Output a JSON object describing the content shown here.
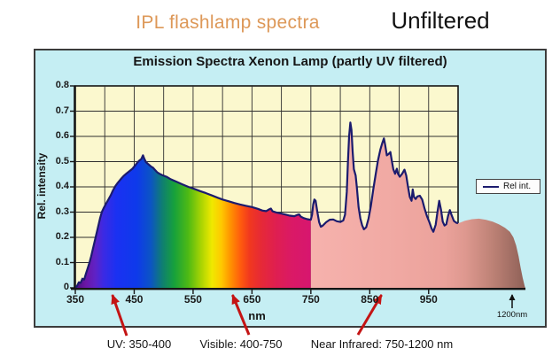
{
  "page": {
    "heading_orange": "IPL flashlamp spectra",
    "heading_black": "Unfiltered"
  },
  "colors": {
    "heading_orange": "#DD9858",
    "chart_bg": "#C5EEF3",
    "plot_bg": "#FBF8CE",
    "grid_color": "#2f2f2f",
    "line_color": "#1B1B6E",
    "arrow_red": "#C41414",
    "axis_color": "#151515"
  },
  "chart": {
    "title": "Emission Spectra Xenon Lamp (partly UV filtered)",
    "x_axis_title": "nm",
    "y_axis_title": "Rel. intensity",
    "extra_x_annotation": "1200nm",
    "legend_label": "Rel int."
  },
  "band_labels": {
    "uv": "UV: 350-400",
    "visible": "Visible: 400-750",
    "nir": "Near Infrared: 750-1200 nm"
  },
  "chart_data": {
    "type": "area",
    "title": "Emission Spectra Xenon Lamp (partly UV filtered)",
    "xlabel": "nm",
    "ylabel": "Rel. intensity",
    "xlim": [
      350,
      1000
    ],
    "ylim": [
      0,
      0.8
    ],
    "x_ticks": [
      350,
      450,
      550,
      650,
      750,
      850,
      950
    ],
    "y_ticks": [
      0,
      0.1,
      0.2,
      0.3,
      0.4,
      0.5,
      0.6,
      0.7,
      0.8
    ],
    "grid": "on",
    "legend": {
      "label": "Rel int.",
      "position": "right-of-plot"
    },
    "spectral_bands": [
      {
        "band": "UV",
        "range_nm": [
          350,
          400
        ],
        "annotation": "UV: 350-400",
        "arrow_target_nm": 413
      },
      {
        "band": "Visible",
        "range_nm": [
          400,
          750
        ],
        "annotation": "Visible: 400-750",
        "arrow_target_nm": 617
      },
      {
        "band": "Near Infrared",
        "range_nm": [
          750,
          1200
        ],
        "annotation": "Near Infrared: 750-1200 nm",
        "arrow_target_nm": 870
      }
    ],
    "extra_annotation": {
      "label": "1200nm",
      "meaning": "spectrum tail extends to 1200 nm beyond plot frame"
    },
    "series": [
      {
        "name": "Rel int.",
        "points_nm_intensity": [
          [
            350,
            0
          ],
          [
            353,
            0.008
          ],
          [
            356,
            0.022
          ],
          [
            359,
            0.02
          ],
          [
            362,
            0.036
          ],
          [
            365,
            0.033
          ],
          [
            368,
            0.056
          ],
          [
            371,
            0.078
          ],
          [
            374,
            0.1
          ],
          [
            377,
            0.125
          ],
          [
            380,
            0.155
          ],
          [
            383,
            0.185
          ],
          [
            386,
            0.215
          ],
          [
            389,
            0.245
          ],
          [
            392,
            0.275
          ],
          [
            395,
            0.3
          ],
          [
            398,
            0.315
          ],
          [
            402,
            0.333
          ],
          [
            406,
            0.349
          ],
          [
            410,
            0.366
          ],
          [
            414,
            0.386
          ],
          [
            418,
            0.403
          ],
          [
            422,
            0.416
          ],
          [
            427,
            0.43
          ],
          [
            432,
            0.443
          ],
          [
            437,
            0.453
          ],
          [
            442,
            0.462
          ],
          [
            447,
            0.472
          ],
          [
            452,
            0.486
          ],
          [
            456,
            0.498
          ],
          [
            459,
            0.505
          ],
          [
            462,
            0.51
          ],
          [
            465,
            0.525
          ],
          [
            467,
            0.512
          ],
          [
            470,
            0.498
          ],
          [
            473,
            0.492
          ],
          [
            476,
            0.486
          ],
          [
            479,
            0.48
          ],
          [
            482,
            0.476
          ],
          [
            485,
            0.468
          ],
          [
            489,
            0.458
          ],
          [
            493,
            0.452
          ],
          [
            498,
            0.446
          ],
          [
            505,
            0.44
          ],
          [
            512,
            0.43
          ],
          [
            522,
            0.42
          ],
          [
            532,
            0.41
          ],
          [
            542,
            0.4
          ],
          [
            552,
            0.392
          ],
          [
            562,
            0.383
          ],
          [
            572,
            0.375
          ],
          [
            582,
            0.366
          ],
          [
            592,
            0.357
          ],
          [
            600,
            0.35
          ],
          [
            610,
            0.343
          ],
          [
            620,
            0.336
          ],
          [
            630,
            0.33
          ],
          [
            640,
            0.325
          ],
          [
            650,
            0.32
          ],
          [
            660,
            0.313
          ],
          [
            668,
            0.306
          ],
          [
            674,
            0.304
          ],
          [
            679,
            0.311
          ],
          [
            682,
            0.314
          ],
          [
            685,
            0.303
          ],
          [
            692,
            0.298
          ],
          [
            700,
            0.294
          ],
          [
            708,
            0.29
          ],
          [
            714,
            0.286
          ],
          [
            722,
            0.284
          ],
          [
            727,
            0.289
          ],
          [
            730,
            0.291
          ],
          [
            733,
            0.282
          ],
          [
            738,
            0.276
          ],
          [
            744,
            0.272
          ],
          [
            749,
            0.27
          ],
          [
            750,
            0.27
          ],
          [
            752,
            0.29
          ],
          [
            754,
            0.33
          ],
          [
            756,
            0.35
          ],
          [
            758,
            0.345
          ],
          [
            761,
            0.3
          ],
          [
            764,
            0.26
          ],
          [
            767,
            0.242
          ],
          [
            770,
            0.246
          ],
          [
            776,
            0.26
          ],
          [
            782,
            0.27
          ],
          [
            788,
            0.271
          ],
          [
            794,
            0.264
          ],
          [
            800,
            0.261
          ],
          [
            805,
            0.267
          ],
          [
            808,
            0.29
          ],
          [
            811,
            0.38
          ],
          [
            813,
            0.5
          ],
          [
            815,
            0.6
          ],
          [
            817,
            0.655
          ],
          [
            819,
            0.625
          ],
          [
            821,
            0.54
          ],
          [
            823,
            0.47
          ],
          [
            826,
            0.445
          ],
          [
            828,
            0.4
          ],
          [
            831,
            0.32
          ],
          [
            834,
            0.275
          ],
          [
            837,
            0.248
          ],
          [
            840,
            0.232
          ],
          [
            844,
            0.24
          ],
          [
            848,
            0.275
          ],
          [
            852,
            0.325
          ],
          [
            856,
            0.39
          ],
          [
            860,
            0.45
          ],
          [
            864,
            0.505
          ],
          [
            868,
            0.548
          ],
          [
            871,
            0.572
          ],
          [
            874,
            0.592
          ],
          [
            876,
            0.568
          ],
          [
            879,
            0.525
          ],
          [
            882,
            0.53
          ],
          [
            885,
            0.538
          ],
          [
            887,
            0.51
          ],
          [
            890,
            0.47
          ],
          [
            893,
            0.452
          ],
          [
            896,
            0.472
          ],
          [
            898,
            0.452
          ],
          [
            901,
            0.44
          ],
          [
            905,
            0.452
          ],
          [
            909,
            0.468
          ],
          [
            912,
            0.445
          ],
          [
            915,
            0.4
          ],
          [
            918,
            0.36
          ],
          [
            921,
            0.345
          ],
          [
            923,
            0.39
          ],
          [
            925,
            0.36
          ],
          [
            928,
            0.352
          ],
          [
            931,
            0.362
          ],
          [
            935,
            0.365
          ],
          [
            939,
            0.35
          ],
          [
            943,
            0.315
          ],
          [
            947,
            0.285
          ],
          [
            951,
            0.262
          ],
          [
            955,
            0.235
          ],
          [
            958,
            0.222
          ],
          [
            962,
            0.25
          ],
          [
            965,
            0.3
          ],
          [
            968,
            0.345
          ],
          [
            971,
            0.31
          ],
          [
            974,
            0.262
          ],
          [
            977,
            0.247
          ],
          [
            980,
            0.252
          ],
          [
            983,
            0.285
          ],
          [
            986,
            0.308
          ],
          [
            989,
            0.288
          ],
          [
            993,
            0.265
          ],
          [
            997,
            0.258
          ],
          [
            1000,
            0.256
          ]
        ]
      }
    ],
    "tail_beyond_plot_points_nm_intensity": [
      [
        1005,
        0.258
      ],
      [
        1020,
        0.266
      ],
      [
        1040,
        0.272
      ],
      [
        1060,
        0.274
      ],
      [
        1080,
        0.27
      ],
      [
        1100,
        0.262
      ],
      [
        1118,
        0.252
      ],
      [
        1136,
        0.238
      ],
      [
        1150,
        0.222
      ],
      [
        1160,
        0.2
      ],
      [
        1168,
        0.168
      ],
      [
        1175,
        0.125
      ],
      [
        1181,
        0.08
      ],
      [
        1187,
        0.04
      ],
      [
        1193,
        0.005
      ],
      [
        1195,
        0
      ]
    ],
    "visible_band_gradient_stops_nm_color": [
      [
        350,
        "#4A0E7E"
      ],
      [
        368,
        "#6B16A6"
      ],
      [
        384,
        "#5F22C6"
      ],
      [
        398,
        "#3B2AE4"
      ],
      [
        420,
        "#1A31F2"
      ],
      [
        455,
        "#0E3AEA"
      ],
      [
        478,
        "#0C54C4"
      ],
      [
        498,
        "#0F7F70"
      ],
      [
        518,
        "#17A13B"
      ],
      [
        542,
        "#4FBA14"
      ],
      [
        563,
        "#A6D303"
      ],
      [
        582,
        "#EFE900"
      ],
      [
        598,
        "#FFC900"
      ],
      [
        613,
        "#FF9400"
      ],
      [
        630,
        "#FF5D0D"
      ],
      [
        646,
        "#F1381F"
      ],
      [
        665,
        "#E62A36"
      ],
      [
        690,
        "#DF1F50"
      ],
      [
        718,
        "#DA1966"
      ],
      [
        750,
        "#D7166F"
      ]
    ],
    "ir_band_gradient_stops_frac_color": [
      [
        0,
        "#F6B2AD"
      ],
      [
        0.35,
        "#F1AAA4"
      ],
      [
        0.62,
        "#EBA29B"
      ],
      [
        0.72,
        "#DE988F"
      ],
      [
        0.85,
        "#BC8175"
      ],
      [
        1,
        "#8E6057"
      ]
    ]
  }
}
